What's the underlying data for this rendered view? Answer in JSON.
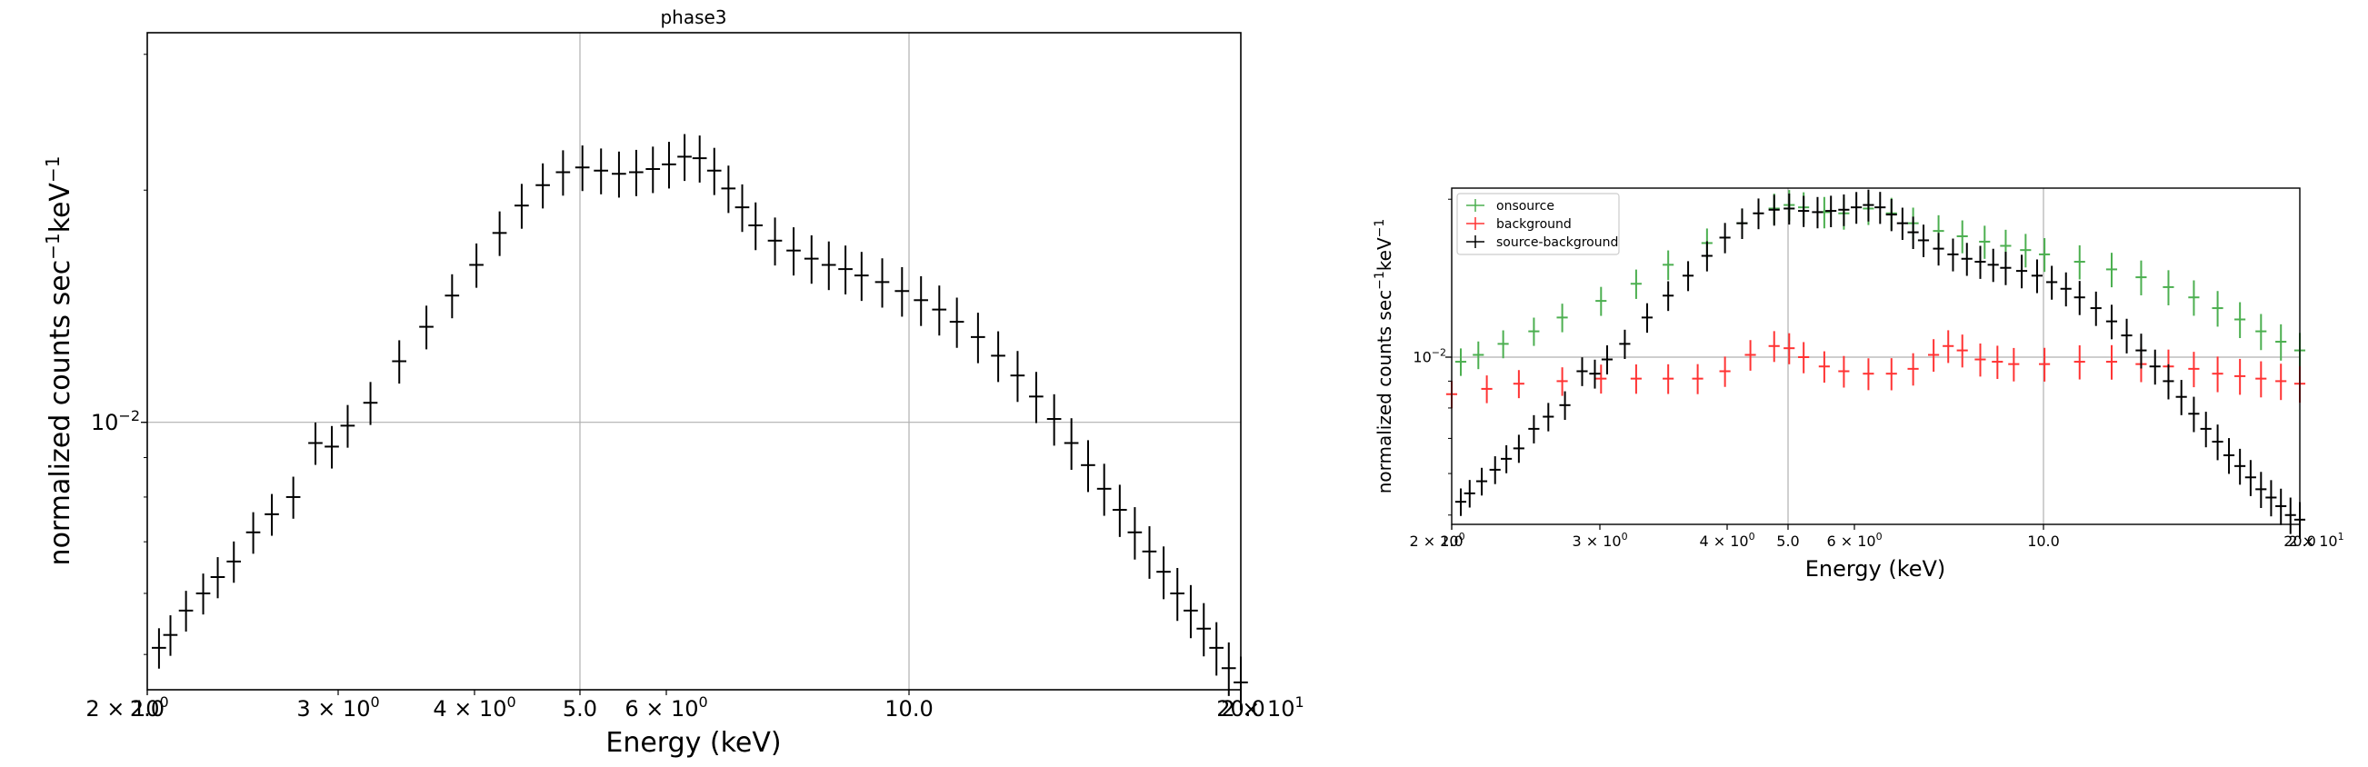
{
  "chart_data": [
    {
      "type": "scatter",
      "title": "phase3",
      "xlabel": "Energy (keV)",
      "ylabel": "normalized counts sec^-1 keV^-1",
      "x_scale": "log",
      "y_scale": "log",
      "xlim": [
        2.0,
        20.0
      ],
      "ylim": [
        0.0045,
        0.032
      ],
      "x_tick_labels": [
        "2 × 10^0",
        "2.0",
        "3 × 10^0",
        "4 × 10^0",
        "5.0",
        "6 × 10^0",
        "10.0",
        "20.0",
        "2 × 10^1"
      ],
      "y_tick_labels": [
        "10^-2"
      ],
      "grid": true,
      "legend": null,
      "series": [
        {
          "color": "#000000",
          "marker": "errorbar",
          "x": [
            2.05,
            2.1,
            2.17,
            2.25,
            2.32,
            2.4,
            2.5,
            2.6,
            2.72,
            2.85,
            2.95,
            3.05,
            3.2,
            3.4,
            3.6,
            3.8,
            4.0,
            4.2,
            4.4,
            4.6,
            4.8,
            5.0,
            5.2,
            5.4,
            5.6,
            5.8,
            6.0,
            6.2,
            6.4,
            6.6,
            6.8,
            7.0,
            7.2,
            7.5,
            7.8,
            8.1,
            8.4,
            8.7,
            9.0,
            9.4,
            9.8,
            10.2,
            10.6,
            11.0,
            11.5,
            12.0,
            12.5,
            13.0,
            13.5,
            14.0,
            14.5,
            15.0,
            15.5,
            16.0,
            16.5,
            17.0,
            17.5,
            18.0,
            18.5,
            19.0,
            19.5,
            20.0
          ],
          "y": [
            0.0051,
            0.0053,
            0.0057,
            0.006,
            0.0063,
            0.0066,
            0.0072,
            0.0076,
            0.008,
            0.0094,
            0.0093,
            0.0099,
            0.0106,
            0.012,
            0.0133,
            0.0146,
            0.016,
            0.0176,
            0.0191,
            0.0203,
            0.0211,
            0.0214,
            0.0212,
            0.021,
            0.0211,
            0.0213,
            0.0216,
            0.0221,
            0.022,
            0.0212,
            0.0201,
            0.019,
            0.018,
            0.0172,
            0.0167,
            0.0163,
            0.016,
            0.0158,
            0.0155,
            0.0152,
            0.0148,
            0.0144,
            0.014,
            0.0135,
            0.0129,
            0.0122,
            0.0115,
            0.0108,
            0.0101,
            0.0094,
            0.0088,
            0.0082,
            0.0077,
            0.0072,
            0.0068,
            0.0064,
            0.006,
            0.0057,
            0.0054,
            0.0051,
            0.0048,
            0.0046
          ]
        }
      ]
    },
    {
      "type": "scatter",
      "title": "",
      "xlabel": "Energy (keV)",
      "ylabel": "normalized counts sec^-1 keV^-1",
      "x_scale": "log",
      "y_scale": "log",
      "xlim": [
        2.0,
        20.0
      ],
      "ylim": [
        0.0048,
        0.021
      ],
      "x_tick_labels": [
        "2 × 10^0",
        "2.0",
        "3 × 10^0",
        "4 × 10^0",
        "5.0",
        "6 × 10^0",
        "10.0",
        "20.0",
        "2 × 10^1"
      ],
      "y_tick_labels": [
        "10^-2"
      ],
      "grid": true,
      "legend": "top-left",
      "series": [
        {
          "name": "onsource",
          "color": "#4caf50",
          "marker": "errorbar",
          "x": [
            2.05,
            2.15,
            2.3,
            2.5,
            2.7,
            3.0,
            3.3,
            3.6,
            4.0,
            4.4,
            4.8,
            5.0,
            5.2,
            5.5,
            5.8,
            6.2,
            6.6,
            7.0,
            7.5,
            8.0,
            8.5,
            9.0,
            9.5,
            10.0,
            11.0,
            12.0,
            13.0,
            14.0,
            15.0,
            16.0,
            17.0,
            18.0,
            19.0,
            20.0
          ],
          "y": [
            0.0098,
            0.0101,
            0.0106,
            0.0112,
            0.0119,
            0.0128,
            0.0138,
            0.015,
            0.0165,
            0.018,
            0.0192,
            0.0195,
            0.0193,
            0.0189,
            0.0188,
            0.0192,
            0.0188,
            0.018,
            0.0174,
            0.017,
            0.0166,
            0.0163,
            0.016,
            0.0157,
            0.0152,
            0.0147,
            0.0142,
            0.0136,
            0.013,
            0.0124,
            0.0118,
            0.0112,
            0.0107,
            0.0103
          ]
        },
        {
          "name": "background",
          "color": "#ff3333",
          "marker": "errorbar",
          "x": [
            2.0,
            2.2,
            2.4,
            2.7,
            3.0,
            3.3,
            3.6,
            3.9,
            4.2,
            4.5,
            4.8,
            5.0,
            5.2,
            5.5,
            5.8,
            6.2,
            6.6,
            7.0,
            7.4,
            7.7,
            8.0,
            8.4,
            8.8,
            9.2,
            10.0,
            11.0,
            12.0,
            13.0,
            14.0,
            15.0,
            16.0,
            17.0,
            18.0,
            19.0,
            20.0
          ],
          "y": [
            0.0085,
            0.0087,
            0.0089,
            0.009,
            0.0091,
            0.0091,
            0.0091,
            0.0091,
            0.0094,
            0.0101,
            0.0105,
            0.0104,
            0.01,
            0.0096,
            0.0094,
            0.0093,
            0.0093,
            0.0095,
            0.0101,
            0.0105,
            0.0103,
            0.0099,
            0.0098,
            0.0097,
            0.0097,
            0.0098,
            0.0098,
            0.0097,
            0.0096,
            0.0095,
            0.0093,
            0.0092,
            0.0091,
            0.009,
            0.0089
          ]
        },
        {
          "name": "source-background",
          "color": "#000000",
          "marker": "errorbar",
          "x": [
            2.05,
            2.1,
            2.17,
            2.25,
            2.32,
            2.4,
            2.5,
            2.6,
            2.72,
            2.85,
            2.95,
            3.05,
            3.2,
            3.4,
            3.6,
            3.8,
            4.0,
            4.2,
            4.4,
            4.6,
            4.8,
            5.0,
            5.2,
            5.4,
            5.6,
            5.8,
            6.0,
            6.2,
            6.4,
            6.6,
            6.8,
            7.0,
            7.2,
            7.5,
            7.8,
            8.1,
            8.4,
            8.7,
            9.0,
            9.4,
            9.8,
            10.2,
            10.6,
            11.0,
            11.5,
            12.0,
            12.5,
            13.0,
            13.5,
            14.0,
            14.5,
            15.0,
            15.5,
            16.0,
            16.5,
            17.0,
            17.5,
            18.0,
            18.5,
            19.0,
            19.5,
            20.0
          ],
          "y": [
            0.0053,
            0.0055,
            0.0058,
            0.0061,
            0.0064,
            0.0067,
            0.0073,
            0.0077,
            0.0081,
            0.0094,
            0.0093,
            0.0099,
            0.0106,
            0.0119,
            0.0131,
            0.0143,
            0.0156,
            0.0169,
            0.018,
            0.0188,
            0.0191,
            0.0192,
            0.019,
            0.0189,
            0.019,
            0.0191,
            0.0193,
            0.0195,
            0.0193,
            0.0187,
            0.018,
            0.0173,
            0.0167,
            0.0161,
            0.0157,
            0.0154,
            0.0152,
            0.015,
            0.0148,
            0.0146,
            0.0143,
            0.0139,
            0.0135,
            0.013,
            0.0124,
            0.0117,
            0.011,
            0.0103,
            0.0096,
            0.009,
            0.0084,
            0.0078,
            0.0073,
            0.0069,
            0.0065,
            0.0062,
            0.0059,
            0.0056,
            0.0054,
            0.0052,
            0.005,
            0.0049
          ]
        }
      ]
    }
  ]
}
